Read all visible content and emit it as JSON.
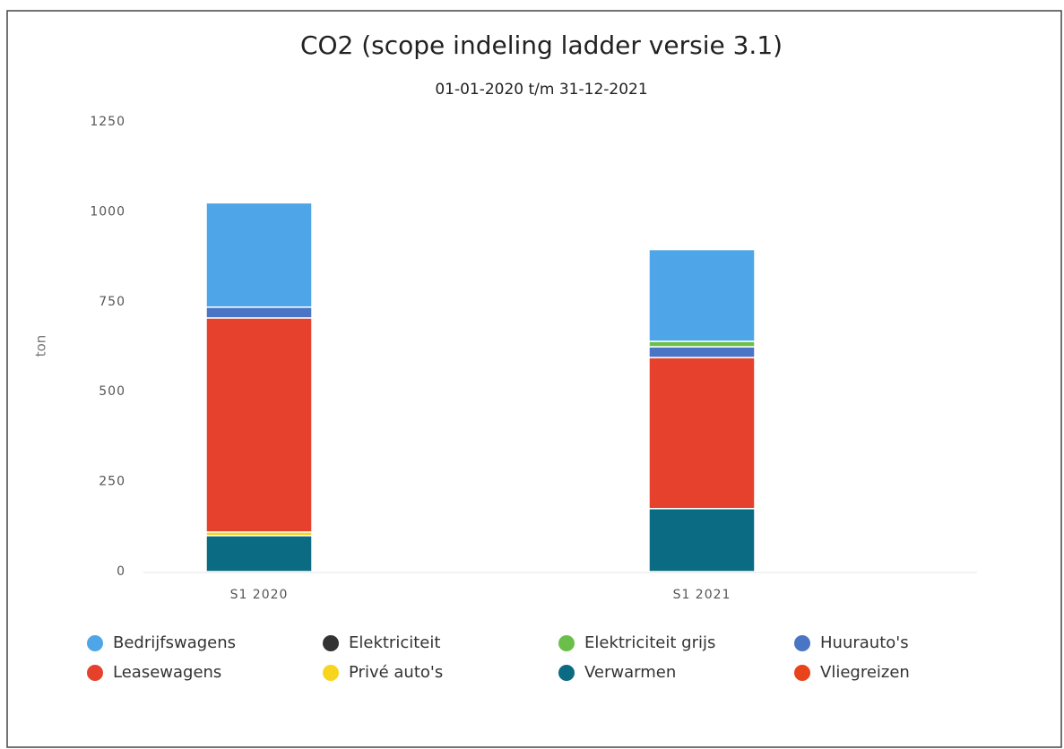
{
  "chart_data": {
    "type": "bar",
    "stacked": true,
    "title": "CO2 (scope indeling ladder versie 3.1)",
    "subtitle": "01-01-2020 t/m 31-12-2021",
    "y_label": "ton",
    "categories": [
      "S1 2020",
      "S1 2021"
    ],
    "ylim": [
      0,
      1250
    ],
    "yticks": [
      0,
      250,
      500,
      750,
      1000,
      1250
    ],
    "grid": false,
    "series": [
      {
        "name": "Bedrijfswagens",
        "color": "#4ea6e8",
        "values": [
          290,
          255
        ]
      },
      {
        "name": "Elektriciteit",
        "color": "#333333",
        "values": [
          null,
          null
        ]
      },
      {
        "name": "Elektriciteit grijs",
        "color": "#6abf4b",
        "values": [
          null,
          15
        ]
      },
      {
        "name": "Huurauto's",
        "color": "#4a74c4",
        "values": [
          30,
          30
        ]
      },
      {
        "name": "Leasewagens",
        "color": "#e5412d",
        "values": [
          595,
          420
        ]
      },
      {
        "name": "Privé auto's",
        "color": "#f7d51d",
        "values": [
          10,
          null
        ]
      },
      {
        "name": "Verwarmen",
        "color": "#0b6b82",
        "values": [
          100,
          175
        ]
      },
      {
        "name": "Vliegreizen",
        "color": "#e8431a",
        "values": [
          null,
          null
        ]
      }
    ]
  }
}
